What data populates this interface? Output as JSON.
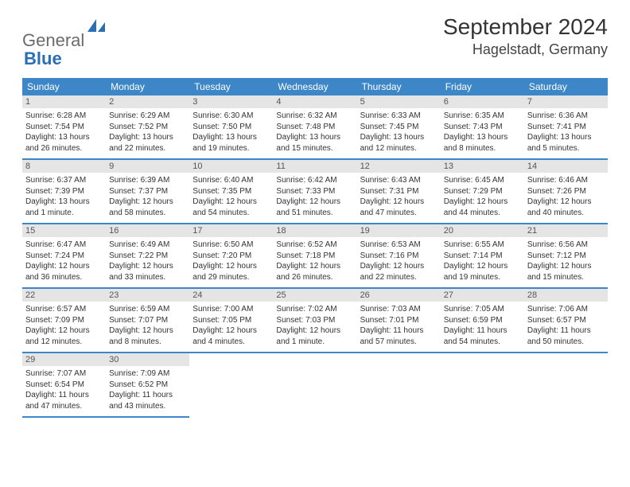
{
  "logo": {
    "text1": "General",
    "text2": "Blue"
  },
  "title": "September 2024",
  "location": "Hagelstadt, Germany",
  "weekdays": [
    "Sunday",
    "Monday",
    "Tuesday",
    "Wednesday",
    "Thursday",
    "Friday",
    "Saturday"
  ],
  "colors": {
    "header_bg": "#3d87c8",
    "daynum_bg": "#e5e5e5",
    "logo_gray": "#6b6b6b",
    "logo_blue": "#2a6fb5"
  },
  "weeks": [
    [
      {
        "n": "1",
        "sr": "Sunrise: 6:28 AM",
        "ss": "Sunset: 7:54 PM",
        "dl": "Daylight: 13 hours and 26 minutes."
      },
      {
        "n": "2",
        "sr": "Sunrise: 6:29 AM",
        "ss": "Sunset: 7:52 PM",
        "dl": "Daylight: 13 hours and 22 minutes."
      },
      {
        "n": "3",
        "sr": "Sunrise: 6:30 AM",
        "ss": "Sunset: 7:50 PM",
        "dl": "Daylight: 13 hours and 19 minutes."
      },
      {
        "n": "4",
        "sr": "Sunrise: 6:32 AM",
        "ss": "Sunset: 7:48 PM",
        "dl": "Daylight: 13 hours and 15 minutes."
      },
      {
        "n": "5",
        "sr": "Sunrise: 6:33 AM",
        "ss": "Sunset: 7:45 PM",
        "dl": "Daylight: 13 hours and 12 minutes."
      },
      {
        "n": "6",
        "sr": "Sunrise: 6:35 AM",
        "ss": "Sunset: 7:43 PM",
        "dl": "Daylight: 13 hours and 8 minutes."
      },
      {
        "n": "7",
        "sr": "Sunrise: 6:36 AM",
        "ss": "Sunset: 7:41 PM",
        "dl": "Daylight: 13 hours and 5 minutes."
      }
    ],
    [
      {
        "n": "8",
        "sr": "Sunrise: 6:37 AM",
        "ss": "Sunset: 7:39 PM",
        "dl": "Daylight: 13 hours and 1 minute."
      },
      {
        "n": "9",
        "sr": "Sunrise: 6:39 AM",
        "ss": "Sunset: 7:37 PM",
        "dl": "Daylight: 12 hours and 58 minutes."
      },
      {
        "n": "10",
        "sr": "Sunrise: 6:40 AM",
        "ss": "Sunset: 7:35 PM",
        "dl": "Daylight: 12 hours and 54 minutes."
      },
      {
        "n": "11",
        "sr": "Sunrise: 6:42 AM",
        "ss": "Sunset: 7:33 PM",
        "dl": "Daylight: 12 hours and 51 minutes."
      },
      {
        "n": "12",
        "sr": "Sunrise: 6:43 AM",
        "ss": "Sunset: 7:31 PM",
        "dl": "Daylight: 12 hours and 47 minutes."
      },
      {
        "n": "13",
        "sr": "Sunrise: 6:45 AM",
        "ss": "Sunset: 7:29 PM",
        "dl": "Daylight: 12 hours and 44 minutes."
      },
      {
        "n": "14",
        "sr": "Sunrise: 6:46 AM",
        "ss": "Sunset: 7:26 PM",
        "dl": "Daylight: 12 hours and 40 minutes."
      }
    ],
    [
      {
        "n": "15",
        "sr": "Sunrise: 6:47 AM",
        "ss": "Sunset: 7:24 PM",
        "dl": "Daylight: 12 hours and 36 minutes."
      },
      {
        "n": "16",
        "sr": "Sunrise: 6:49 AM",
        "ss": "Sunset: 7:22 PM",
        "dl": "Daylight: 12 hours and 33 minutes."
      },
      {
        "n": "17",
        "sr": "Sunrise: 6:50 AM",
        "ss": "Sunset: 7:20 PM",
        "dl": "Daylight: 12 hours and 29 minutes."
      },
      {
        "n": "18",
        "sr": "Sunrise: 6:52 AM",
        "ss": "Sunset: 7:18 PM",
        "dl": "Daylight: 12 hours and 26 minutes."
      },
      {
        "n": "19",
        "sr": "Sunrise: 6:53 AM",
        "ss": "Sunset: 7:16 PM",
        "dl": "Daylight: 12 hours and 22 minutes."
      },
      {
        "n": "20",
        "sr": "Sunrise: 6:55 AM",
        "ss": "Sunset: 7:14 PM",
        "dl": "Daylight: 12 hours and 19 minutes."
      },
      {
        "n": "21",
        "sr": "Sunrise: 6:56 AM",
        "ss": "Sunset: 7:12 PM",
        "dl": "Daylight: 12 hours and 15 minutes."
      }
    ],
    [
      {
        "n": "22",
        "sr": "Sunrise: 6:57 AM",
        "ss": "Sunset: 7:09 PM",
        "dl": "Daylight: 12 hours and 12 minutes."
      },
      {
        "n": "23",
        "sr": "Sunrise: 6:59 AM",
        "ss": "Sunset: 7:07 PM",
        "dl": "Daylight: 12 hours and 8 minutes."
      },
      {
        "n": "24",
        "sr": "Sunrise: 7:00 AM",
        "ss": "Sunset: 7:05 PM",
        "dl": "Daylight: 12 hours and 4 minutes."
      },
      {
        "n": "25",
        "sr": "Sunrise: 7:02 AM",
        "ss": "Sunset: 7:03 PM",
        "dl": "Daylight: 12 hours and 1 minute."
      },
      {
        "n": "26",
        "sr": "Sunrise: 7:03 AM",
        "ss": "Sunset: 7:01 PM",
        "dl": "Daylight: 11 hours and 57 minutes."
      },
      {
        "n": "27",
        "sr": "Sunrise: 7:05 AM",
        "ss": "Sunset: 6:59 PM",
        "dl": "Daylight: 11 hours and 54 minutes."
      },
      {
        "n": "28",
        "sr": "Sunrise: 7:06 AM",
        "ss": "Sunset: 6:57 PM",
        "dl": "Daylight: 11 hours and 50 minutes."
      }
    ],
    [
      {
        "n": "29",
        "sr": "Sunrise: 7:07 AM",
        "ss": "Sunset: 6:54 PM",
        "dl": "Daylight: 11 hours and 47 minutes."
      },
      {
        "n": "30",
        "sr": "Sunrise: 7:09 AM",
        "ss": "Sunset: 6:52 PM",
        "dl": "Daylight: 11 hours and 43 minutes."
      },
      null,
      null,
      null,
      null,
      null
    ]
  ]
}
